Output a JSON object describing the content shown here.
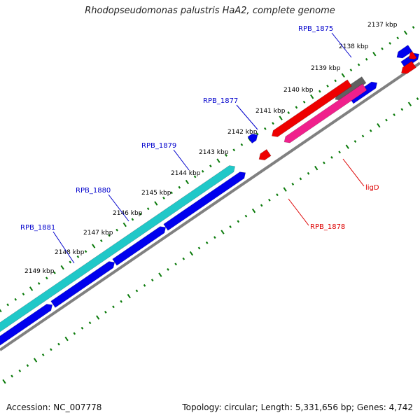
{
  "title": "Rhodopseudomonas palustris HaA2, complete genome",
  "accession": "Accession: NC_007778",
  "topology": "Topology: circular; Length: 5,331,656 bp; Genes: 4,742",
  "colors": {
    "backbone": "#808080",
    "tick": "#0a7a0a",
    "label_blue": "#0000cc",
    "label_red": "#dd0000",
    "gene_cyan": "#20c8c8",
    "gene_blue": "#0000ee",
    "gene_red": "#ee0000",
    "gene_pink": "#f0208c",
    "gene_gray": "#606060"
  },
  "ticks": [
    {
      "label": "2137 kbp"
    },
    {
      "label": "2138 kbp"
    },
    {
      "label": "2139 kbp"
    },
    {
      "label": "2140 kbp"
    },
    {
      "label": "2141 kbp"
    },
    {
      "label": "2142 kbp"
    },
    {
      "label": "2143 kbp"
    },
    {
      "label": "2144 kbp"
    },
    {
      "label": "2145 kbp"
    },
    {
      "label": "2146 kbp"
    },
    {
      "label": "2147 kbp"
    },
    {
      "label": "2148 kbp"
    },
    {
      "label": "2149 kbp"
    }
  ],
  "gene_labels": [
    {
      "text": "RPB_1875",
      "color": "blue"
    },
    {
      "text": "RPB_1877",
      "color": "blue"
    },
    {
      "text": "RPB_1879",
      "color": "blue"
    },
    {
      "text": "RPB_1880",
      "color": "blue"
    },
    {
      "text": "RPB_1881",
      "color": "blue"
    },
    {
      "text": "ligD",
      "color": "red"
    },
    {
      "text": "RPB_1878",
      "color": "red"
    }
  ]
}
